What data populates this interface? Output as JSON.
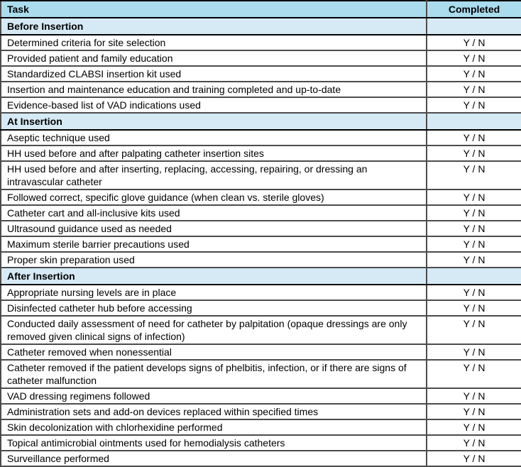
{
  "table": {
    "columns": {
      "task_label": "Task",
      "completed_label": "Completed"
    },
    "completed_value": "Y / N",
    "sections": [
      {
        "title": "Before Insertion",
        "rows": [
          "Determined criteria for site selection",
          "Provided patient and family education",
          "Standardized CLABSI insertion kit used",
          "Insertion and maintenance education and training completed and up-to-date",
          "Evidence-based list of VAD indications used"
        ]
      },
      {
        "title": "At Insertion",
        "rows": [
          "Aseptic technique used",
          "HH used before and after palpating catheter insertion sites",
          "HH used before and after inserting, replacing, accessing, repairing, or dressing an intravascular catheter",
          "Followed correct, specific glove guidance (when clean vs. sterile gloves)",
          "Catheter cart and all-inclusive kits used",
          "Ultrasound guidance used as needed",
          "Maximum sterile barrier precautions used",
          "Proper skin preparation used"
        ]
      },
      {
        "title": "After Insertion",
        "rows": [
          "Appropriate nursing levels are in place",
          "Disinfected catheter hub before accessing",
          "Conducted daily assessment of need for catheter by palpitation (opaque dressings are only removed given clinical signs of infection)",
          "Catheter removed when nonessential",
          "Catheter removed if the patient develops signs of phelbitis, infection, or if there are signs of catheter malfunction",
          "VAD dressing regimens followed",
          "Administration sets and add-on devices replaced within specified times",
          "Skin decolonization with chlorhexidine performed",
          "Topical antimicrobial ointments used for hemodialysis catheters",
          "Surveillance performed"
        ]
      }
    ],
    "colors": {
      "header_bg": "#aadcee",
      "section_bg": "#d6eaf5",
      "row_bg": "#ffffff",
      "outer_border": "#000000",
      "inner_border": "#4c4c4c",
      "text": "#000000"
    }
  }
}
